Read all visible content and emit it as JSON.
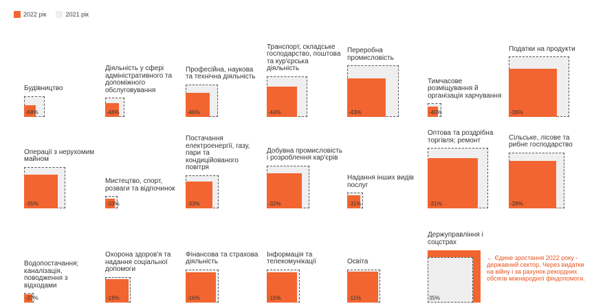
{
  "legend": [
    {
      "name": "2022 рік",
      "color": "#f26530"
    },
    {
      "name": "2021 рік",
      "color": "#efefef"
    }
  ],
  "note": "← Єдине зростання 2022 року - державний сектор. Через видатки на війну і за рахунок рекордних обсягів міжнародної фіндопомоги.",
  "chart_data": {
    "type": "area",
    "series": [
      {
        "name": "2022 рік"
      },
      {
        "name": "2021 рік"
      }
    ],
    "items": [
      {
        "label": "Будівництво",
        "change": "-68%",
        "v2021": 0.12,
        "v2022": 0.0375
      },
      {
        "label": "Діяльність у сфері адміністративного та допоміжного обслуговування",
        "change": "-48%",
        "v2021": 0.1,
        "v2022": 0.052
      },
      {
        "label": "Професійна, наукова та технічна діяльність",
        "change": "-46%",
        "v2021": 0.29,
        "v2022": 0.158
      },
      {
        "label": "Транспорт, складське господарство, поштова та кур'єрська діяльність",
        "change": "-44%",
        "v2021": 0.45,
        "v2022": 0.253
      },
      {
        "label": "Переробна промисловість",
        "change": "-43%",
        "v2021": 0.72,
        "v2022": 0.41
      },
      {
        "label": "Тимчасове розміщування й організація харчування",
        "change": "-40%",
        "v2021": 0.05,
        "v2022": 0.03
      },
      {
        "label": "Податки на продукти",
        "change": "-36%",
        "v2021": 1.0,
        "v2022": 0.64
      },
      {
        "label": "Операції з нерухомим майном",
        "change": "-35%",
        "v2021": 0.47,
        "v2022": 0.305
      },
      {
        "label": "Мистецтво, спорт, розваги та відпочинок",
        "change": "-33%",
        "v2021": 0.04,
        "v2022": 0.027
      },
      {
        "label": "Постачання електроенергії, газу, пари та кондиційованого повітря",
        "change": "-33%",
        "v2021": 0.3,
        "v2022": 0.2
      },
      {
        "label": "Добувна промисловість і розроблення кар'єрів",
        "change": "-32%",
        "v2021": 0.5,
        "v2022": 0.34
      },
      {
        "label": "Надання інших видів послуг",
        "change": "-31%",
        "v2021": 0.067,
        "v2022": 0.046
      },
      {
        "label": "Оптова та роздрібна торгівля; ремонт",
        "change": "-31%",
        "v2021": 1.0,
        "v2022": 0.69
      },
      {
        "label": "Сільське, лісове та рибне господарство",
        "change": "-28%",
        "v2021": 0.85,
        "v2022": 0.61
      },
      {
        "label": "Водопостачання; каналізація, поводження з відходами",
        "change": "-27%",
        "v2021": 0.025,
        "v2022": 0.018
      },
      {
        "label": "Охорона здоров'я та надання соціальної допомоги",
        "change": "-18%",
        "v2021": 0.18,
        "v2022": 0.148
      },
      {
        "label": "Фінансова та страхова діяльність",
        "change": "-16%",
        "v2021": 0.3,
        "v2022": 0.252
      },
      {
        "label": "Інформація та телекомунікації",
        "change": "-15%",
        "v2021": 0.3,
        "v2022": 0.255
      },
      {
        "label": "Освіта",
        "change": "-11%",
        "v2021": 0.3,
        "v2022": 0.267
      },
      {
        "label": "Держуправління і соцстрах",
        "change": "35%",
        "v2021": 0.56,
        "v2022": 0.756
      }
    ]
  }
}
